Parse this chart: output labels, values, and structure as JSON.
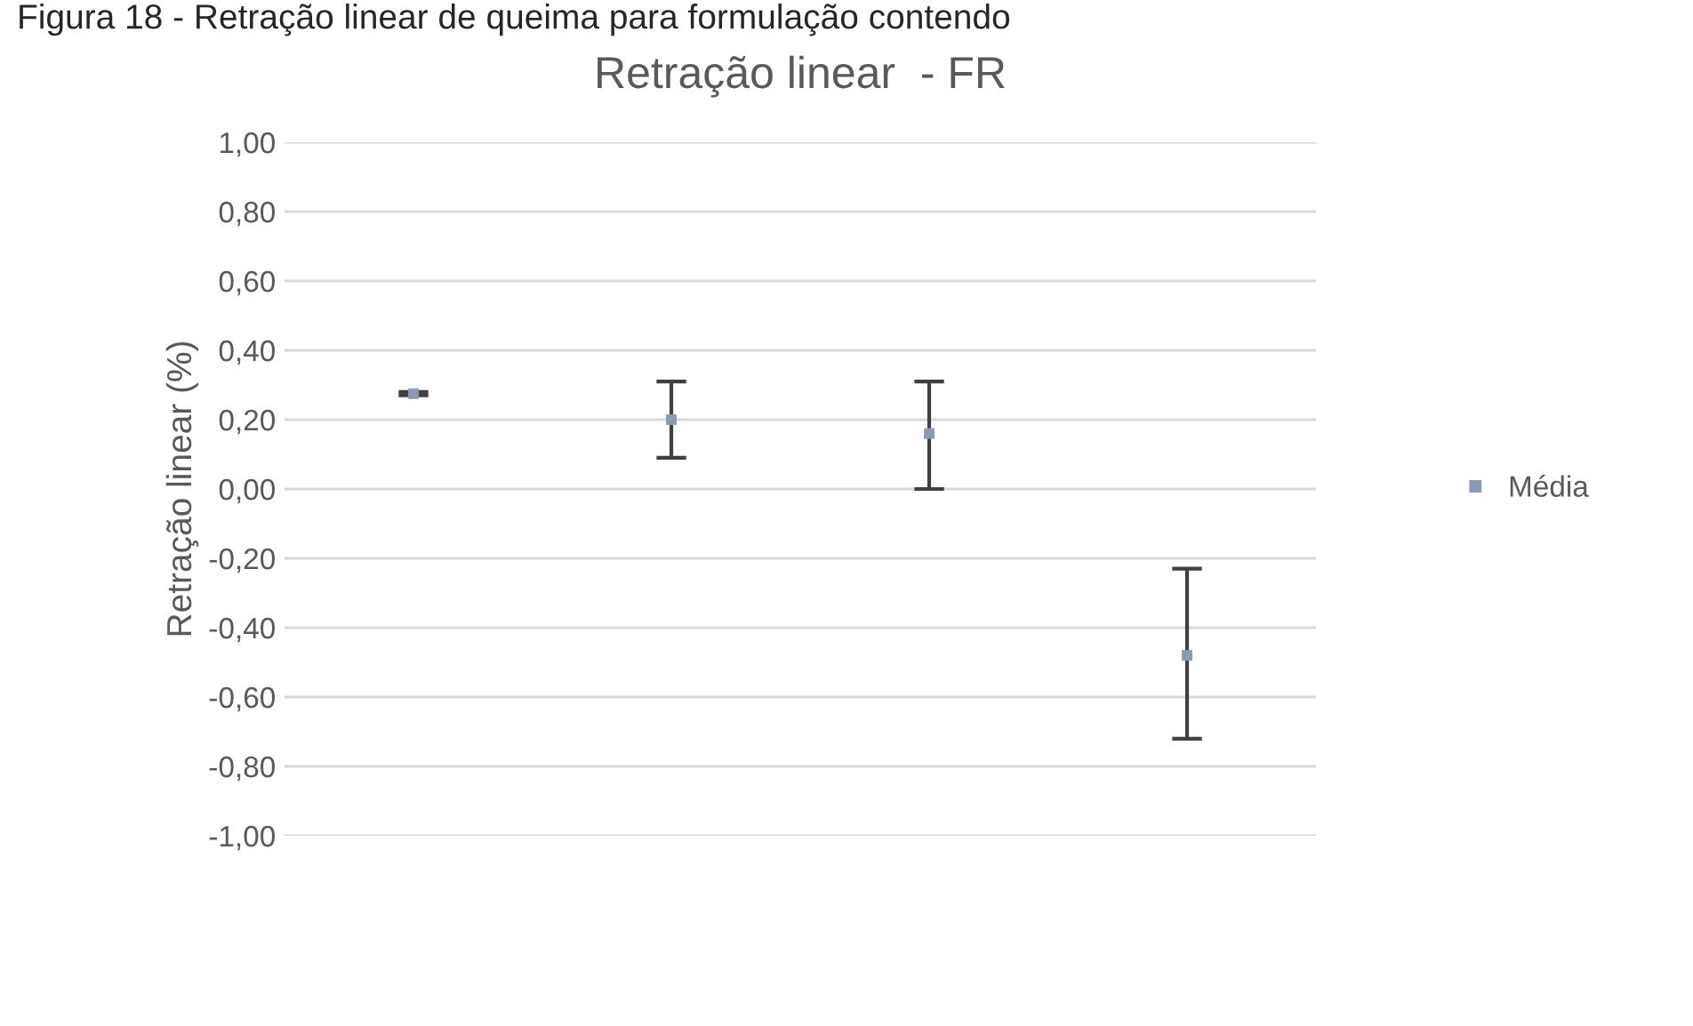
{
  "chart_data": {
    "type": "scatter",
    "title": "Retração linear  - FR",
    "ylabel": "Retração linear (%)",
    "annotations": [
      "Figura 18 - Retração linear de queima para formulação contendo"
    ],
    "categories": [
      null,
      null,
      null,
      null
    ],
    "series": [
      {
        "name": "Média",
        "color": "#8c9bb3",
        "values": [
          0.275,
          0.2,
          0.16,
          -0.48
        ],
        "errors": [
          [
            0.27,
            0.28
          ],
          [
            0.09,
            0.31
          ],
          [
            0.0,
            0.31
          ],
          [
            -0.72,
            -0.23
          ]
        ]
      }
    ],
    "ylim": [
      -1.0,
      1.0
    ],
    "yticks": [
      {
        "value": 1.0,
        "label": "1,00"
      },
      {
        "value": 0.8,
        "label": "0,80"
      },
      {
        "value": 0.6,
        "label": "0,60"
      },
      {
        "value": 0.4,
        "label": "0,40"
      },
      {
        "value": 0.2,
        "label": "0,20"
      },
      {
        "value": 0.0,
        "label": "0,00"
      },
      {
        "value": -0.2,
        "label": "-0,20"
      },
      {
        "value": -0.4,
        "label": "-0,40"
      },
      {
        "value": -0.6,
        "label": "-0,60"
      },
      {
        "value": -0.8,
        "label": "-0,80"
      },
      {
        "value": -1.0,
        "label": "-1,00"
      }
    ],
    "grid": "y",
    "legend": "right",
    "tick_labels": "y",
    "marker": "square"
  }
}
